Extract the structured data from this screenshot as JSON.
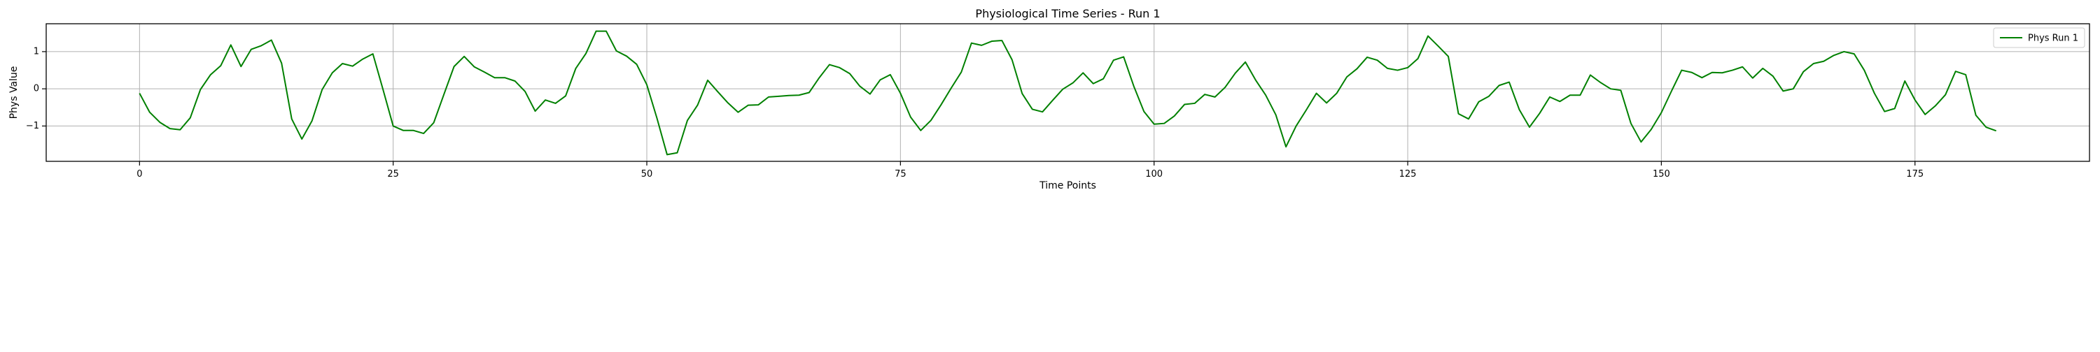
{
  "chart_data": {
    "type": "line",
    "title": "Physiological Time Series - Run 1",
    "xlabel": "Time Points",
    "ylabel": "Phys Value",
    "xlim": [
      -9.2,
      192.2
    ],
    "ylim": [
      -1.95,
      1.75
    ],
    "x_ticks": [
      0,
      25,
      50,
      75,
      100,
      125,
      150,
      175
    ],
    "y_ticks": [
      -1,
      0,
      1
    ],
    "grid": true,
    "legend_position": "top-right",
    "series": [
      {
        "name": "Phys Run 1",
        "color": "#008000",
        "x": [
          0,
          1,
          2,
          3,
          4,
          5,
          6,
          7,
          8,
          9,
          10,
          11,
          12,
          13,
          14,
          15,
          16,
          17,
          18,
          19,
          20,
          21,
          22,
          23,
          24,
          25,
          26,
          27,
          28,
          29,
          30,
          31,
          32,
          33,
          34,
          35,
          36,
          37,
          38,
          39,
          40,
          41,
          42,
          43,
          44,
          45,
          46,
          47,
          48,
          49,
          50,
          51,
          52,
          53,
          54,
          55,
          56,
          57,
          58,
          59,
          60,
          61,
          62,
          63,
          64,
          65,
          66,
          67,
          68,
          69,
          70,
          71,
          72,
          73,
          74,
          75,
          76,
          77,
          78,
          79,
          80,
          81,
          82,
          83,
          84,
          85,
          86,
          87,
          88,
          89,
          90,
          91,
          92,
          93,
          94,
          95,
          96,
          97,
          98,
          99,
          100,
          101,
          102,
          103,
          104,
          105,
          106,
          107,
          108,
          109,
          110,
          111,
          112,
          113,
          114,
          115,
          116,
          117,
          118,
          119,
          120,
          121,
          122,
          123,
          124,
          125,
          126,
          127,
          128,
          129,
          130,
          131,
          132,
          133,
          134,
          135,
          136,
          137,
          138,
          139,
          140,
          141,
          142,
          143,
          144,
          145,
          146,
          147,
          148,
          149,
          150,
          151,
          152,
          153,
          154,
          155,
          156,
          157,
          158,
          159,
          160,
          161,
          162,
          163,
          164,
          165,
          166,
          167,
          168,
          169,
          170,
          171,
          172,
          173,
          174,
          175,
          176,
          177,
          178,
          179,
          180,
          181,
          182,
          183
        ],
        "values": [
          -0.12,
          -0.63,
          -0.9,
          -1.07,
          -1.1,
          -0.78,
          -0.02,
          0.38,
          0.62,
          1.18,
          0.6,
          1.06,
          1.16,
          1.31,
          0.69,
          -0.81,
          -1.35,
          -0.86,
          -0.02,
          0.43,
          0.68,
          0.61,
          0.8,
          0.94,
          -0.02,
          -1.0,
          -1.12,
          -1.12,
          -1.2,
          -0.91,
          -0.15,
          0.6,
          0.87,
          0.59,
          0.45,
          0.3,
          0.3,
          0.21,
          -0.07,
          -0.6,
          -0.3,
          -0.39,
          -0.19,
          0.55,
          0.95,
          1.55,
          1.55,
          1.02,
          0.88,
          0.66,
          0.11,
          -0.79,
          -1.77,
          -1.72,
          -0.85,
          -0.44,
          0.23,
          -0.08,
          -0.38,
          -0.63,
          -0.44,
          -0.43,
          -0.22,
          -0.2,
          -0.18,
          -0.17,
          -0.1,
          0.3,
          0.65,
          0.57,
          0.41,
          0.07,
          -0.14,
          0.24,
          0.38,
          -0.12,
          -0.76,
          -1.12,
          -0.85,
          -0.43,
          0.02,
          0.45,
          1.23,
          1.17,
          1.28,
          1.3,
          0.78,
          -0.13,
          -0.55,
          -0.62,
          -0.31,
          -0.01,
          0.16,
          0.43,
          0.14,
          0.27,
          0.77,
          0.86,
          0.07,
          -0.61,
          -0.95,
          -0.93,
          -0.73,
          -0.42,
          -0.39,
          -0.15,
          -0.22,
          0.04,
          0.42,
          0.72,
          0.24,
          -0.17,
          -0.7,
          -1.56,
          -1.0,
          -0.57,
          -0.12,
          -0.38,
          -0.12,
          0.32,
          0.54,
          0.85,
          0.77,
          0.55,
          0.5,
          0.57,
          0.81,
          1.42,
          1.15,
          0.87,
          -0.67,
          -0.81,
          -0.35,
          -0.2,
          0.09,
          0.18,
          -0.56,
          -1.03,
          -0.66,
          -0.22,
          -0.34,
          -0.17,
          -0.17,
          0.37,
          0.17,
          0.0,
          -0.04,
          -0.93,
          -1.43,
          -1.09,
          -0.64,
          -0.06,
          0.5,
          0.44,
          0.3,
          0.44,
          0.43,
          0.5,
          0.59,
          0.29,
          0.55,
          0.34,
          -0.06,
          0.0,
          0.46,
          0.68,
          0.74,
          0.9,
          1.0,
          0.94,
          0.5,
          -0.12,
          -0.61,
          -0.53,
          0.21,
          -0.3,
          -0.69,
          -0.46,
          -0.16,
          0.47,
          0.38,
          -0.71,
          -1.03,
          -1.13
        ]
      }
    ]
  }
}
